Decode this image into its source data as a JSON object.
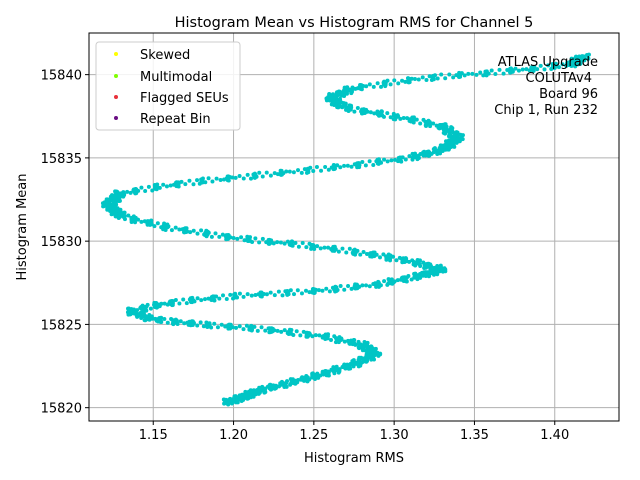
{
  "chart_data": {
    "type": "scatter",
    "title": "Histogram Mean vs Histogram RMS for Channel 5",
    "xlabel": "Histogram RMS",
    "ylabel": "Histogram Mean",
    "xlim": [
      1.11,
      1.44
    ],
    "ylim": [
      15819.2,
      15842.5
    ],
    "xticks": [
      1.15,
      1.2,
      1.25,
      1.3,
      1.35,
      1.4
    ],
    "xtick_labels": [
      "1.15",
      "1.20",
      "1.25",
      "1.30",
      "1.35",
      "1.40"
    ],
    "yticks": [
      15820,
      15825,
      15830,
      15835,
      15840
    ],
    "ytick_labels": [
      "15820",
      "15825",
      "15830",
      "15835",
      "15840"
    ],
    "grid": true,
    "legend_position": "top-left",
    "legend": [
      {
        "label": "Skewed",
        "color": "#ffff00"
      },
      {
        "label": "Multimodal",
        "color": "#7fff00"
      },
      {
        "label": "Flagged SEUs",
        "color": "#e8303a"
      },
      {
        "label": "Repeat Bin",
        "color": "#6a0d83"
      }
    ],
    "annotation_lines": [
      "ATLAS Upgrade",
      "COLUTAv4",
      "Board 96",
      "Chip 1, Run 232"
    ],
    "series": [
      {
        "color": "#00c5c5",
        "points": [
          [
            1.195,
            15820.3
          ],
          [
            1.205,
            15820.6
          ],
          [
            1.215,
            15821.0
          ],
          [
            1.235,
            15821.5
          ],
          [
            1.255,
            15822.0
          ],
          [
            1.275,
            15822.6
          ],
          [
            1.288,
            15823.2
          ],
          [
            1.28,
            15823.8
          ],
          [
            1.255,
            15824.3
          ],
          [
            1.22,
            15824.7
          ],
          [
            1.18,
            15825.0
          ],
          [
            1.15,
            15825.3
          ],
          [
            1.135,
            15825.8
          ],
          [
            1.16,
            15826.3
          ],
          [
            1.2,
            15826.7
          ],
          [
            1.25,
            15827.0
          ],
          [
            1.29,
            15827.4
          ],
          [
            1.315,
            15827.9
          ],
          [
            1.33,
            15828.3
          ],
          [
            1.31,
            15828.8
          ],
          [
            1.28,
            15829.3
          ],
          [
            1.24,
            15829.8
          ],
          [
            1.2,
            15830.2
          ],
          [
            1.16,
            15830.8
          ],
          [
            1.13,
            15831.5
          ],
          [
            1.122,
            15832.2
          ],
          [
            1.13,
            15832.9
          ],
          [
            1.17,
            15833.5
          ],
          [
            1.22,
            15834.0
          ],
          [
            1.27,
            15834.5
          ],
          [
            1.31,
            15835.0
          ],
          [
            1.33,
            15835.5
          ],
          [
            1.34,
            15836.2
          ],
          [
            1.33,
            15836.9
          ],
          [
            1.3,
            15837.5
          ],
          [
            1.27,
            15838.0
          ],
          [
            1.26,
            15838.6
          ],
          [
            1.275,
            15839.2
          ],
          [
            1.32,
            15839.8
          ],
          [
            1.37,
            15840.2
          ],
          [
            1.41,
            15840.6
          ],
          [
            1.418,
            15841.1
          ]
        ]
      }
    ]
  }
}
